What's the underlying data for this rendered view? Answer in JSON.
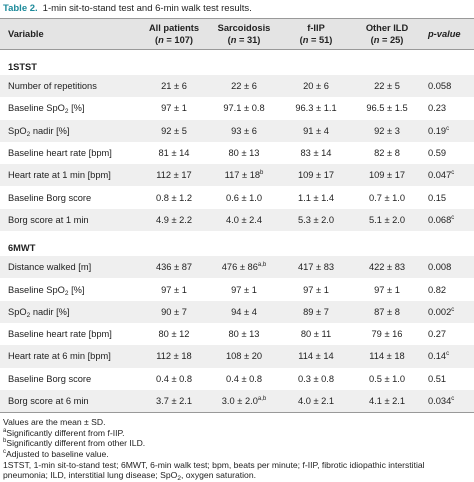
{
  "title": {
    "label": "Table 2.",
    "text": "1-min sit-to-stand test and 6-min walk test results."
  },
  "table": {
    "header": [
      {
        "name": "Variable"
      },
      {
        "name": "All patients",
        "count": {
          "text": "(",
          "italic": "n",
          "after": " = 107)"
        }
      },
      {
        "name": "Sarcoidosis",
        "count": {
          "text": "(",
          "italic": "n",
          "after": " = 31)"
        }
      },
      {
        "name": "f-IIP",
        "count": {
          "text": "(",
          "italic": "n",
          "after": " = 51)"
        }
      },
      {
        "name": "Other ILD",
        "count": {
          "text": "(",
          "italic": "n",
          "after": " = 25)"
        }
      },
      {
        "name": {
          "italic": "p-value"
        }
      }
    ],
    "sections": [
      {
        "name": "1STST",
        "rows": [
          {
            "label": "Number of repetitions",
            "cells": [
              "21 ± 6",
              "22 ± 6",
              "20 ± 6",
              "22 ± 5",
              "0.058"
            ]
          },
          {
            "label": {
              "text": "Baseline SpO",
              "sub": "2",
              "after": " [%]"
            },
            "cells": [
              "97 ± 1",
              "97.1 ± 0.8",
              "96.3 ± 1.1",
              "96.5 ± 1.5",
              "0.23"
            ]
          },
          {
            "label": {
              "text": "SpO",
              "sub": "2",
              "after": " nadir [%]"
            },
            "cells": [
              "92 ± 5",
              "93 ± 6",
              "91 ± 4",
              "92 ± 3",
              {
                "text": "0.19",
                "sup": "c"
              }
            ]
          },
          {
            "label": "Baseline heart rate [bpm]",
            "cells": [
              "81 ± 14",
              "80 ± 13",
              "83 ± 14",
              "82 ± 8",
              "0.59"
            ]
          },
          {
            "label": "Heart rate at 1 min [bpm]",
            "cells": [
              "112 ± 17",
              {
                "text": "117 ± 18",
                "sup": "b"
              },
              "109 ± 17",
              "109 ± 17",
              {
                "text": "0.047",
                "sup": "c"
              }
            ]
          },
          {
            "label": "Baseline Borg score",
            "cells": [
              "0.8 ± 1.2",
              "0.6 ± 1.0",
              "1.1 ± 1.4",
              "0.7 ± 1.0",
              "0.15"
            ]
          },
          {
            "label": "Borg score at 1 min",
            "cells": [
              "4.9 ± 2.2",
              "4.0 ± 2.4",
              "5.3 ± 2.0",
              "5.1 ± 2.0",
              {
                "text": "0.068",
                "sup": "c"
              }
            ]
          }
        ]
      },
      {
        "name": "6MWT",
        "rows": [
          {
            "label": "Distance walked [m]",
            "cells": [
              "436 ± 87",
              {
                "text": "476 ± 86",
                "sup": "a,b"
              },
              "417 ± 83",
              "422 ± 83",
              "0.008"
            ]
          },
          {
            "label": {
              "text": "Baseline SpO",
              "sub": "2",
              "after": " [%]"
            },
            "cells": [
              "97 ± 1",
              "97 ± 1",
              "97 ± 1",
              "97 ± 1",
              "0.82"
            ]
          },
          {
            "label": {
              "text": "SpO",
              "sub": "2",
              "after": " nadir [%]"
            },
            "cells": [
              "90 ± 7",
              "94 ± 4",
              "89 ± 7",
              "87 ± 8",
              {
                "text": "0.002",
                "sup": "c"
              }
            ]
          },
          {
            "label": "Baseline heart rate [bpm]",
            "cells": [
              "80 ± 12",
              "80 ± 13",
              "80 ± 11",
              "79 ± 16",
              "0.27"
            ]
          },
          {
            "label": "Heart rate at 6 min [bpm]",
            "cells": [
              "112 ± 18",
              "108 ± 20",
              "114 ± 14",
              "114 ± 18",
              {
                "text": "0.14",
                "sup": "c"
              }
            ]
          },
          {
            "label": "Baseline Borg score",
            "cells": [
              "0.4 ± 0.8",
              "0.4 ± 0.8",
              "0.3 ± 0.8",
              "0.5 ± 1.0",
              "0.51"
            ]
          },
          {
            "label": "Borg score at 6 min",
            "cells": [
              "3.7 ± 2.1",
              {
                "text": "3.0 ± 2.0",
                "sup": "a,b"
              },
              "4.0 ± 2.1",
              "4.1 ± 2.1",
              {
                "text": "0.034",
                "sup": "c"
              }
            ]
          }
        ]
      }
    ]
  },
  "footnotes": [
    "Values are the mean ± SD.",
    {
      "sup": "a",
      "text": "Significantly different from f-IIP."
    },
    {
      "sup": "b",
      "text": "Significantly different from other ILD."
    },
    {
      "sup": "c",
      "text": "Adjusted to baseline value."
    },
    {
      "text": "1STST, 1-min sit-to-stand test; 6MWT, 6-min walk test; bpm, beats per minute; f-IIP, fibrotic idiopathic interstitial pneumonia; ILD, interstitial lung disease; SpO",
      "sub": "2",
      "after": ", oxygen saturation."
    }
  ]
}
